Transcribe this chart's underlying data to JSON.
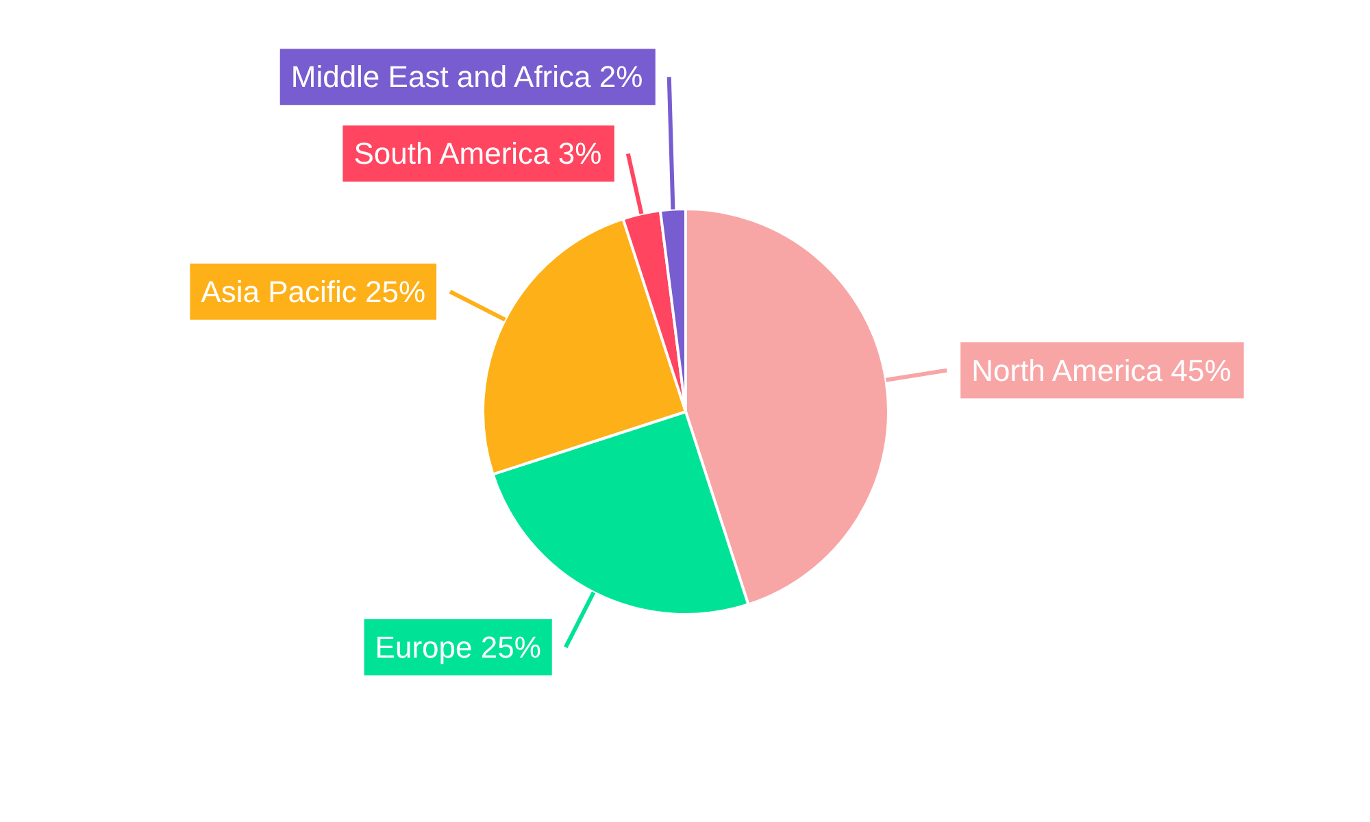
{
  "chart_data": {
    "type": "pie",
    "categories": [
      "North America",
      "Europe",
      "Asia Pacific",
      "South America",
      "Middle East and Africa"
    ],
    "values": [
      45,
      25,
      25,
      3,
      2
    ],
    "value_labels": [
      "45%",
      "25%",
      "25%",
      "3%",
      "2%"
    ],
    "colors": [
      "#f8a5a6",
      "#00e396",
      "#feb019",
      "#ff4560",
      "#775dd0"
    ]
  }
}
